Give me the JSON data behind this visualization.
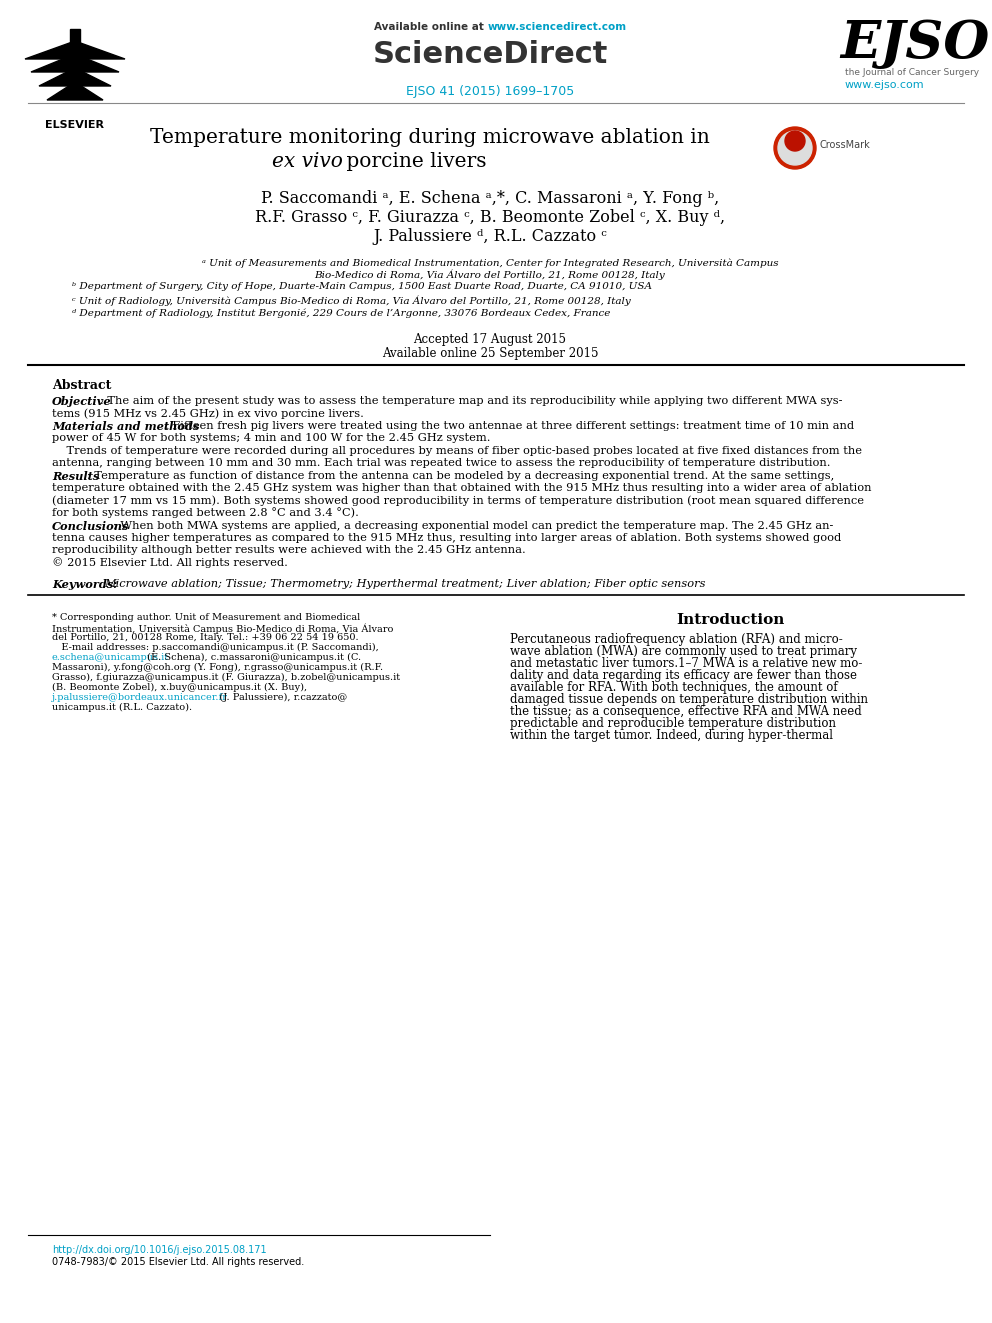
{
  "bg_color": "#ffffff",
  "header_available": "Available online at ",
  "header_url": "www.sciencedirect.com",
  "header_url_color": "#00a0c6",
  "header_sd": "ScienceDirect",
  "header_journal_ref": "EJSO 41 (2015) 1699–1705",
  "header_journal_ref_color": "#00a0c6",
  "ejso_text": "EJSO",
  "ejso_subtitle": "the Journal of Cancer Surgery",
  "ejso_url": "www.ejso.com",
  "ejso_url_color": "#00a0c6",
  "title_line1": "Temperature monitoring during microwave ablation in",
  "title_line2_italic": "ex vivo",
  "title_line2_normal": " porcine livers",
  "crossmark": "CrossMark",
  "author_line1": "P. Saccomandi ᵃ, E. Schena ᵃ,*, C. Massaroni ᵃ, Y. Fong ᵇ,",
  "author_line2": "R.F. Grasso ᶜ, F. Giurazza ᶜ, B. Beomonte Zobel ᶜ, X. Buy ᵈ,",
  "author_line3": "J. Palussiere ᵈ, R.L. Cazzato ᶜ",
  "affil_a_line1": "ᵃ Unit of Measurements and Biomedical Instrumentation, Center for Integrated Research, Università Campus",
  "affil_a_line2": "Bio-Medico di Roma, Via Álvaro del Portillo, 21, Rome 00128, Italy",
  "affil_b": "ᵇ Department of Surgery, City of Hope, Duarte-Main Campus, 1500 East Duarte Road, Duarte, CA 91010, USA",
  "affil_c": "ᶜ Unit of Radiology, Università Campus Bio-Medico di Roma, Via Álvaro del Portillo, 21, Rome 00128, Italy",
  "affil_d": "ᵈ Department of Radiology, Institut Bergonié, 229 Cours de l’Argonne, 33076 Bordeaux Cedex, France",
  "accepted": "Accepted 17 August 2015",
  "available_online": "Available online 25 September 2015",
  "abstract_title": "Abstract",
  "obj_label": "Objective",
  "obj_text1": ": The aim of the present study was to assess the temperature map and its reproducibility while applying two different MWA sys-",
  "obj_text2": "tems (915 MHz vs 2.45 GHz) in ex vivo porcine livers.",
  "mm_label": "Materials and methods",
  "mm_text1": ": Fifteen fresh pig livers were treated using the two antennae at three different settings: treatment time of 10 min and",
  "mm_text2": "power of 45 W for both systems; 4 min and 100 W for the 2.45 GHz system.",
  "mm_text3": "    Trends of temperature were recorded during all procedures by means of fiber optic-based probes located at five fixed distances from the",
  "mm_text4": "antenna, ranging between 10 mm and 30 mm. Each trial was repeated twice to assess the reproducibility of temperature distribution.",
  "res_label": "Results",
  "res_text1": ": Temperature as function of distance from the antenna can be modeled by a decreasing exponential trend. At the same settings,",
  "res_text2": "temperature obtained with the 2.45 GHz system was higher than that obtained with the 915 MHz thus resulting into a wider area of ablation",
  "res_text3": "(diameter 17 mm vs 15 mm). Both systems showed good reproducibility in terms of temperature distribution (root mean squared difference",
  "res_text4": "for both systems ranged between 2.8 °C and 3.4 °C).",
  "con_label": "Conclusions",
  "con_text1": ": When both MWA systems are applied, a decreasing exponential model can predict the temperature map. The 2.45 GHz an-",
  "con_text2": "tenna causes higher temperatures as compared to the 915 MHz thus, resulting into larger areas of ablation. Both systems showed good",
  "con_text3": "reproducibility although better results were achieved with the 2.45 GHz antenna.",
  "copyright_abstract": "© 2015 Elsevier Ltd. All rights reserved.",
  "kw_label": "Keywords:",
  "kw_text": "Microwave ablation; Tissue; Thermometry; Hyperthermal treatment; Liver ablation; Fiber optic sensors",
  "intro_title": "Introduction",
  "intro_lines": [
    "Percutaneous radiofrequency ablation (RFA) and micro-",
    "wave ablation (MWA) are commonly used to treat primary",
    "and metastatic liver tumors.1–7 MWA is a relative new mo-",
    "dality and data regarding its efficacy are fewer than those",
    "available for RFA. With both techniques, the amount of",
    "damaged tissue depends on temperature distribution within",
    "the tissue; as a consequence, effective RFA and MWA need",
    "predictable and reproducible temperature distribution",
    "within the target tumor. Indeed, during hyper-thermal"
  ],
  "fn_line1": "* Corresponding author. Unit of Measurement and Biomedical",
  "fn_line2": "Instrumentation, Università Campus Bio-Medico di Roma, Via Álvaro",
  "fn_line3": "del Portillo, 21, 00128 Rome, Italy. Tel.: +39 06 22 54 19 650.",
  "fn_line4": "   E-mail addresses: p.saccomandi@unicampus.it (P. Saccomandi),",
  "fn_line5a": "e.schena@unicampus.it",
  "fn_line5b": " (E. Schena), c.massaroni@unicampus.it (C.",
  "fn_line6": "Massaroni), y.fong@coh.org (Y. Fong), r.grasso@unicampus.it (R.F.",
  "fn_line7": "Grasso), f.giurazza@unicampus.it (F. Giurazza), b.zobel@unicampus.it",
  "fn_line8": "(B. Beomonte Zobel), x.buy@unicampus.it (X. Buy),",
  "fn_line9a": "j.palussiere@bordeaux.unicancer.fr",
  "fn_line9b": "   (J. Palussiere), r.cazzato@",
  "fn_line10": "unicampus.it (R.L. Cazzato).",
  "doi": "http://dx.doi.org/10.1016/j.ejso.2015.08.171",
  "doi_color": "#00a0c6",
  "copyright_bottom": "0748-7983/© 2015 Elsevier Ltd. All rights reserved.",
  "link_color": "#00a0c6"
}
